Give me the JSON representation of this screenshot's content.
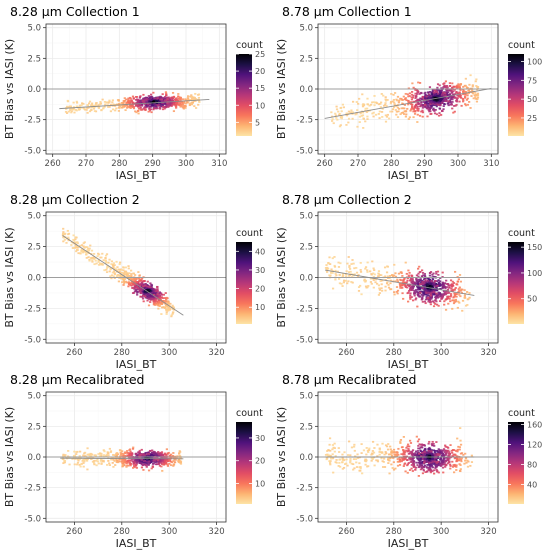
{
  "colors": {
    "panel_bg": "#ffffff",
    "panel_border": "#333333",
    "grid_major": "#ebebeb",
    "grid_minor": "#f5f5f5",
    "zero_line": "#9e9e9e",
    "fit_line": "#8c8c8c",
    "density_scale": [
      "#fde4a6",
      "#fdb472",
      "#f8765c",
      "#e24d64",
      "#b63779",
      "#822681",
      "#4f127b",
      "#1c1044",
      "#000004"
    ]
  },
  "chart_data": [
    {
      "type": "hexbin-density",
      "title": "8.28 µm Collection 1",
      "xlabel": "IASI_BT",
      "ylabel": "BT Bias vs IASI (K)",
      "xlim": [
        258,
        312
      ],
      "ylim": [
        -5.3,
        5.3
      ],
      "xticks": [
        260,
        270,
        280,
        290,
        300,
        310
      ],
      "yticks": [
        -5.0,
        -2.5,
        0.0,
        2.5,
        5.0
      ],
      "zero_line": true,
      "fit_line": {
        "x": [
          262,
          307
        ],
        "y": [
          -1.6,
          -0.85
        ]
      },
      "cloud": {
        "x_min": 264,
        "x_max": 304,
        "spread": 0.28,
        "core_x": 290.5,
        "core_y": -1.05
      },
      "legend": {
        "title": "count",
        "min": 1,
        "max": 25,
        "ticks": [
          5,
          10,
          15,
          20,
          25
        ]
      }
    },
    {
      "type": "hexbin-density",
      "title": "8.78 µm Collection 1",
      "xlabel": "IASI_BT",
      "ylabel": "BT Bias vs IASI (K)",
      "xlim": [
        258,
        312
      ],
      "ylim": [
        -5.3,
        5.3
      ],
      "xticks": [
        260,
        270,
        280,
        290,
        300,
        310
      ],
      "yticks": [
        -5.0,
        -2.5,
        0.0,
        2.5,
        5.0
      ],
      "zero_line": true,
      "fit_line": {
        "x": [
          260,
          310
        ],
        "y": [
          -2.4,
          0.05
        ]
      },
      "cloud": {
        "x_min": 262,
        "x_max": 306,
        "spread": 0.55,
        "core_x": 293.5,
        "core_y": -0.8
      },
      "legend": {
        "title": "count",
        "min": 1,
        "max": 110,
        "ticks": [
          25,
          50,
          75,
          100
        ]
      }
    },
    {
      "type": "hexbin-density",
      "title": "8.28 µm Collection 2",
      "xlabel": "IASI_BT",
      "ylabel": "BT Bias vs IASI (K)",
      "xlim": [
        248,
        324
      ],
      "ylim": [
        -5.3,
        5.3
      ],
      "xticks": [
        260,
        280,
        300,
        320
      ],
      "yticks": [
        -5.0,
        -2.5,
        0.0,
        2.5,
        5.0
      ],
      "zero_line": true,
      "fit_line": {
        "x": [
          255,
          306
        ],
        "y": [
          3.4,
          -3.05
        ]
      },
      "cloud": {
        "x_min": 255,
        "x_max": 302,
        "spread": 0.35,
        "core_x": 291,
        "core_y": -1.1
      },
      "legend": {
        "title": "count",
        "min": 1,
        "max": 45,
        "ticks": [
          10,
          20,
          30,
          40
        ]
      }
    },
    {
      "type": "hexbin-density",
      "title": "8.78 µm Collection 2",
      "xlabel": "IASI_BT",
      "ylabel": "BT Bias vs IASI (K)",
      "xlim": [
        248,
        324
      ],
      "ylim": [
        -5.3,
        5.3
      ],
      "xticks": [
        260,
        280,
        300,
        320
      ],
      "yticks": [
        -5.0,
        -2.5,
        0.0,
        2.5,
        5.0
      ],
      "zero_line": true,
      "fit_line": {
        "x": [
          251,
          314
        ],
        "y": [
          0.6,
          -1.45
        ]
      },
      "cloud": {
        "x_min": 251,
        "x_max": 312,
        "spread": 0.6,
        "core_x": 295,
        "core_y": -0.75
      },
      "legend": {
        "title": "count",
        "min": 1,
        "max": 160,
        "ticks": [
          50,
          100,
          150
        ]
      }
    },
    {
      "type": "hexbin-density",
      "title": "8.28 µm Recalibrated",
      "xlabel": "IASI_BT",
      "ylabel": "BT Bias vs IASI (K)",
      "xlim": [
        248,
        324
      ],
      "ylim": [
        -5.3,
        5.3
      ],
      "xticks": [
        260,
        280,
        300,
        320
      ],
      "yticks": [
        -5.0,
        -2.5,
        0.0,
        2.5,
        5.0
      ],
      "zero_line": true,
      "fit_line": {
        "x": [
          254,
          306
        ],
        "y": [
          -0.1,
          -0.15
        ]
      },
      "cloud": {
        "x_min": 255,
        "x_max": 305,
        "spread": 0.32,
        "core_x": 291,
        "core_y": -0.1
      },
      "legend": {
        "title": "count",
        "min": 1,
        "max": 37,
        "ticks": [
          10,
          20,
          30
        ]
      }
    },
    {
      "type": "hexbin-density",
      "title": "8.78 µm Recalibrated",
      "xlabel": "IASI_BT",
      "ylabel": "BT Bias vs IASI (K)",
      "xlim": [
        248,
        324
      ],
      "ylim": [
        -5.3,
        5.3
      ],
      "xticks": [
        260,
        280,
        300,
        320
      ],
      "yticks": [
        -5.0,
        -2.5,
        0.0,
        2.5,
        5.0
      ],
      "zero_line": true,
      "fit_line": {
        "x": [
          251,
          314
        ],
        "y": [
          0.0,
          0.0
        ]
      },
      "cloud": {
        "x_min": 251,
        "x_max": 313,
        "spread": 0.55,
        "core_x": 295,
        "core_y": 0.0
      },
      "legend": {
        "title": "count",
        "min": 1,
        "max": 165,
        "ticks": [
          40,
          80,
          120,
          160
        ]
      }
    }
  ]
}
